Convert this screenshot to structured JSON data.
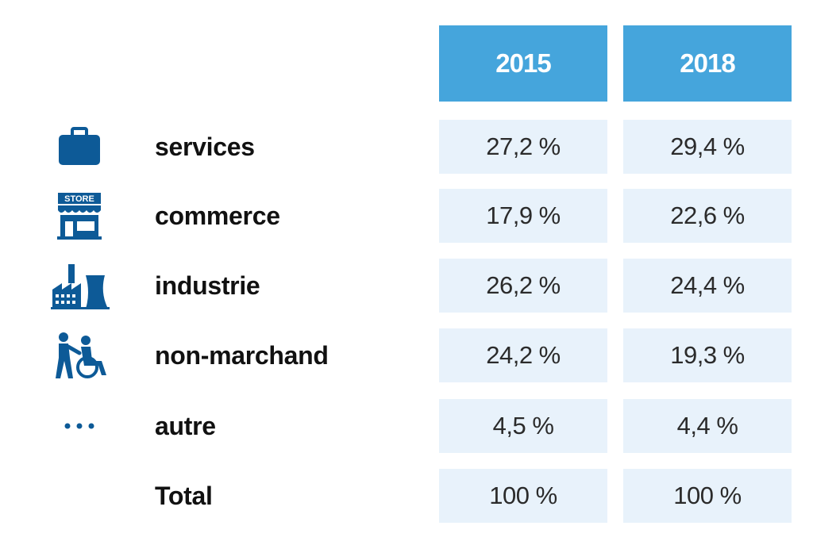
{
  "colors": {
    "header_bg": "#45a5dc",
    "cell_bg": "#e8f2fb",
    "icon_color": "#0d5a97"
  },
  "header": {
    "col_2015": "2015",
    "col_2018": "2018"
  },
  "rows": [
    {
      "icon": "briefcase-icon",
      "label": "services",
      "v2015": "27,2 %",
      "v2018": "29,4 %"
    },
    {
      "icon": "store-icon",
      "icon_text": "STORE",
      "label": "commerce",
      "v2015": "17,9 %",
      "v2018": "22,6 %"
    },
    {
      "icon": "factory-icon",
      "label": "industrie",
      "v2015": "26,2 %",
      "v2018": "24,4 %"
    },
    {
      "icon": "caregiver-wheelchair-icon",
      "label": "non-marchand",
      "v2015": "24,2 %",
      "v2018": "19,3 %"
    },
    {
      "icon": "ellipsis-icon",
      "label": "autre",
      "v2015": "4,5 %",
      "v2018": "4,4 %"
    },
    {
      "icon": "",
      "label": "Total",
      "v2015": "100 %",
      "v2018": "100 %"
    }
  ]
}
